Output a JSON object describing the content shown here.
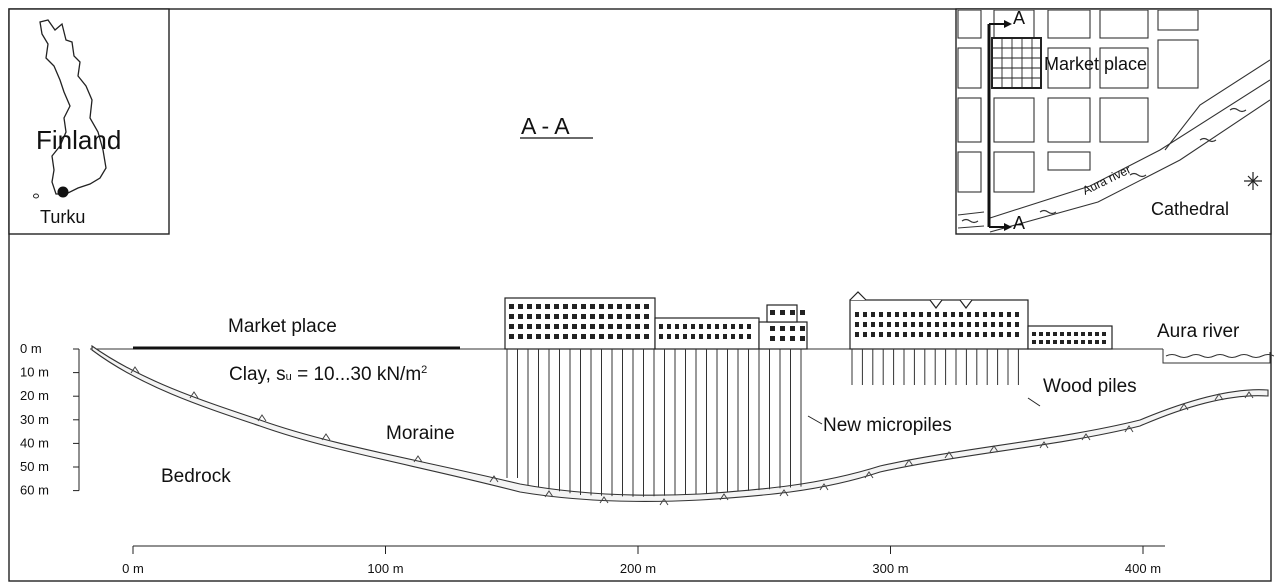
{
  "inset_map": {
    "country": "Finland",
    "city": "Turku"
  },
  "section": {
    "title": "A - A"
  },
  "city_map": {
    "section_marker_top": "A",
    "section_marker_bottom": "A",
    "market_place": "Market place",
    "river": "Aura river",
    "cathedral": "Cathedral"
  },
  "profile": {
    "market_place": "Market place",
    "clay": "Clay, s",
    "clay_sub": "u",
    "clay_range": " = 10...30 kN/m",
    "clay_sup": "2",
    "river": "Aura river",
    "wood_piles": "Wood piles",
    "new_micropiles": "New micropiles",
    "moraine": "Moraine",
    "bedrock": "Bedrock"
  },
  "depth_axis": {
    "ticks": [
      "0 m",
      "10 m",
      "20 m",
      "30 m",
      "40 m",
      "50 m",
      "60 m"
    ]
  },
  "distance_axis": {
    "ticks": [
      "0 m",
      "100 m",
      "200 m",
      "300 m",
      "400 m"
    ]
  }
}
